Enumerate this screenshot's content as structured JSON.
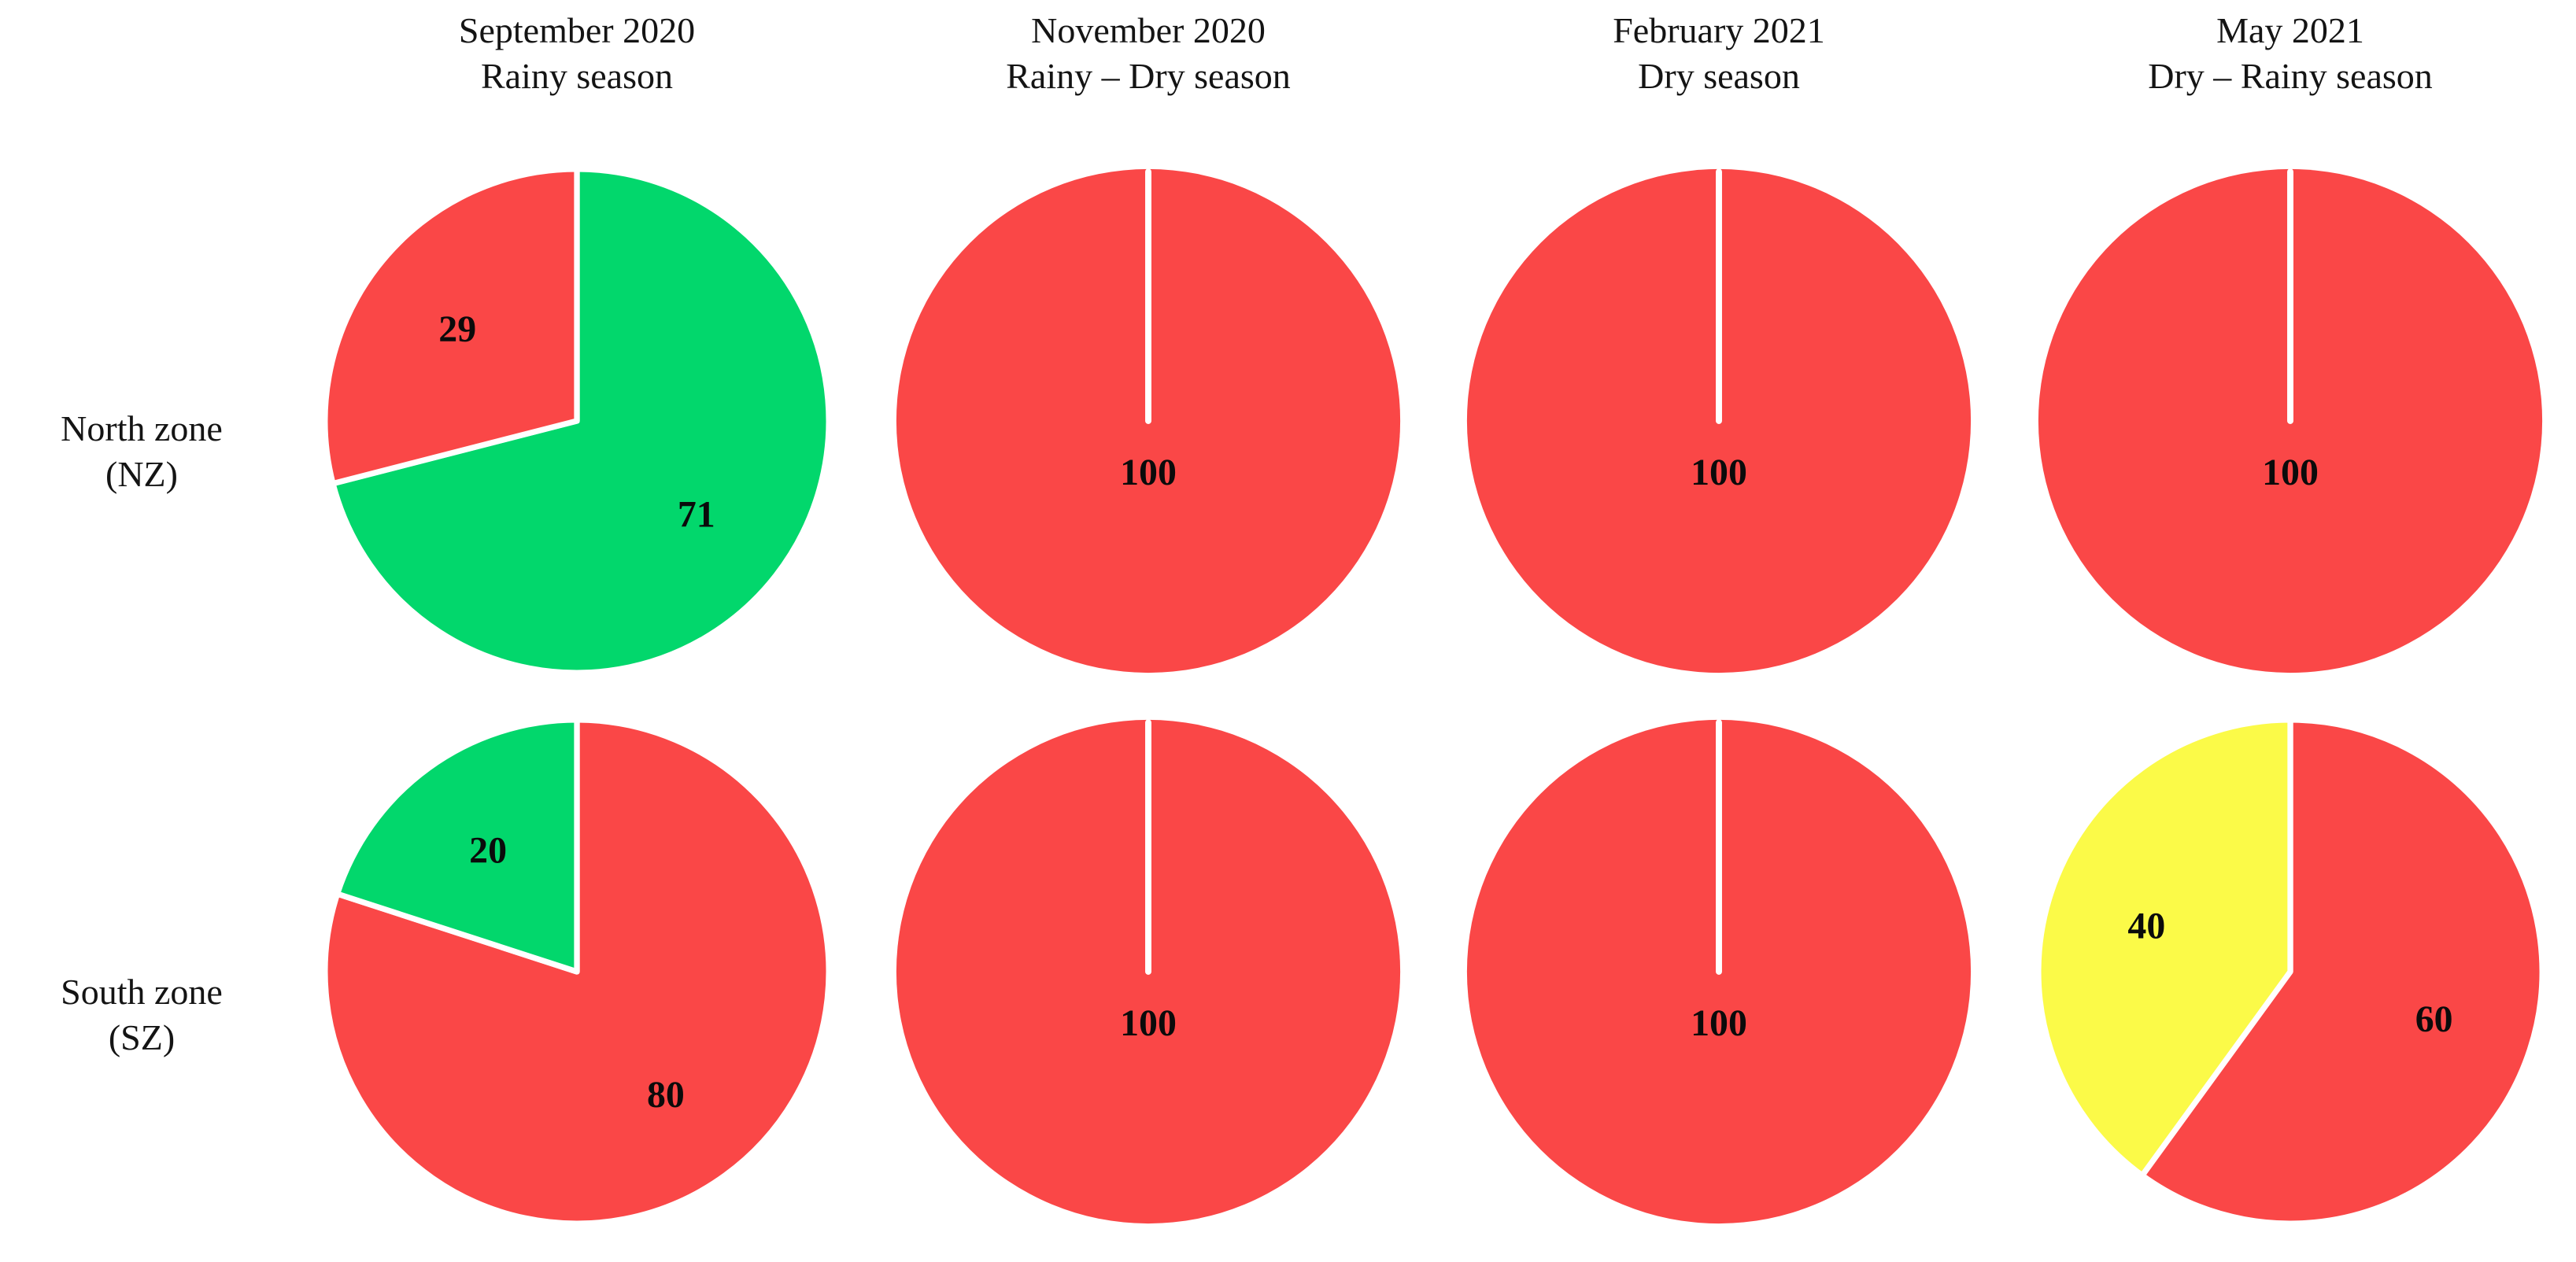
{
  "chart_data": {
    "type": "pie",
    "layout": "grid of 8 pies: 2 zone rows x 4 date columns",
    "unit": "percent",
    "start_angle": "12 o'clock, clockwise",
    "legend": "none",
    "colors": {
      "red": "#FA4747",
      "green": "#02D76C",
      "yellow": "#FBFA48",
      "separator": "#FFFFFF",
      "label_text": "#0B0B0B"
    },
    "columns": [
      {
        "month": "September 2020",
        "season": "Rainy season"
      },
      {
        "month": "November 2020",
        "season": "Rainy – Dry season"
      },
      {
        "month": "February 2021",
        "season": "Dry season"
      },
      {
        "month": "May 2021",
        "season": "Dry – Rainy season"
      }
    ],
    "rows": [
      {
        "zone": "North zone",
        "abbr": "(NZ)"
      },
      {
        "zone": "South zone",
        "abbr": "(SZ)"
      }
    ],
    "pies": [
      {
        "row": "North zone (NZ)",
        "column": "September 2020",
        "slices": [
          {
            "value": 71,
            "color": "green"
          },
          {
            "value": 29,
            "color": "red"
          }
        ]
      },
      {
        "row": "North zone (NZ)",
        "column": "November 2020",
        "slices": [
          {
            "value": 100,
            "color": "red"
          }
        ]
      },
      {
        "row": "North zone (NZ)",
        "column": "February 2021",
        "slices": [
          {
            "value": 100,
            "color": "red"
          }
        ]
      },
      {
        "row": "North zone (NZ)",
        "column": "May 2021",
        "slices": [
          {
            "value": 100,
            "color": "red"
          }
        ]
      },
      {
        "row": "South zone (SZ)",
        "column": "September 2020",
        "slices": [
          {
            "value": 80,
            "color": "red"
          },
          {
            "value": 20,
            "color": "green"
          }
        ]
      },
      {
        "row": "South zone (SZ)",
        "column": "November 2020",
        "slices": [
          {
            "value": 100,
            "color": "red"
          }
        ]
      },
      {
        "row": "South zone (SZ)",
        "column": "February 2021",
        "slices": [
          {
            "value": 100,
            "color": "red"
          }
        ]
      },
      {
        "row": "South zone (SZ)",
        "column": "May 2021",
        "slices": [
          {
            "value": 60,
            "color": "red"
          },
          {
            "value": 40,
            "color": "yellow"
          }
        ]
      }
    ]
  }
}
